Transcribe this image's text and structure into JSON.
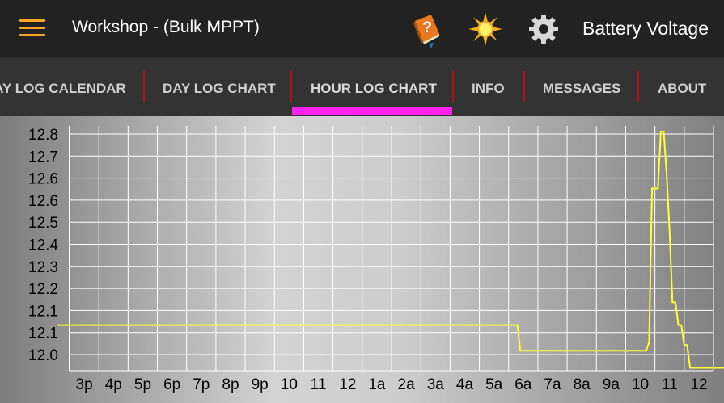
{
  "appbar": {
    "title": "Workshop - (Bulk MPPT)",
    "metric": "Battery Voltage",
    "icons": [
      "menu-icon",
      "help-book-icon",
      "sun-icon",
      "gear-icon"
    ]
  },
  "tabs": [
    {
      "label": "DAY LOG CALENDAR",
      "active": false
    },
    {
      "label": "DAY LOG CHART",
      "active": false
    },
    {
      "label": "HOUR LOG CHART",
      "active": true
    },
    {
      "label": "INFO",
      "active": false
    },
    {
      "label": "MESSAGES",
      "active": false
    },
    {
      "label": "ABOUT",
      "active": false
    }
  ],
  "colors": {
    "accent": "#f5a623",
    "tab_indicator": "#ff22ee",
    "tab_divider": "#b0121b",
    "series": "#ffff33"
  },
  "chart_data": {
    "type": "line",
    "title": "",
    "xlabel": "",
    "ylabel": "",
    "x_ticks": [
      "3p",
      "4p",
      "5p",
      "6p",
      "7p",
      "8p",
      "9p",
      "10",
      "11",
      "12",
      "1a",
      "2a",
      "3a",
      "4a",
      "5a",
      "6a",
      "7a",
      "8a",
      "9a",
      "10",
      "11",
      "12"
    ],
    "y_ticks": [
      "12.8",
      "12.7",
      "12.6",
      "12.6",
      "12.5",
      "12.4",
      "12.3",
      "12.2",
      "12.1",
      "12.1",
      "12.0"
    ],
    "ylim": [
      11.96,
      12.82
    ],
    "grid": true,
    "series": [
      {
        "name": "",
        "x": [
          -0.9,
          14.8,
          14.9,
          19.2,
          19.3,
          19.4,
          19.6,
          19.7,
          19.8,
          19.9,
          20.0,
          20.1,
          20.2,
          20.3,
          20.4,
          20.5,
          20.6,
          20.7,
          20.8,
          21.0,
          22.0
        ],
        "y": [
          12.12,
          12.12,
          12.03,
          12.03,
          12.06,
          12.6,
          12.6,
          12.8,
          12.8,
          12.65,
          12.45,
          12.2,
          12.2,
          12.12,
          12.12,
          12.05,
          12.05,
          11.97,
          11.97,
          11.97,
          11.97
        ]
      }
    ]
  }
}
